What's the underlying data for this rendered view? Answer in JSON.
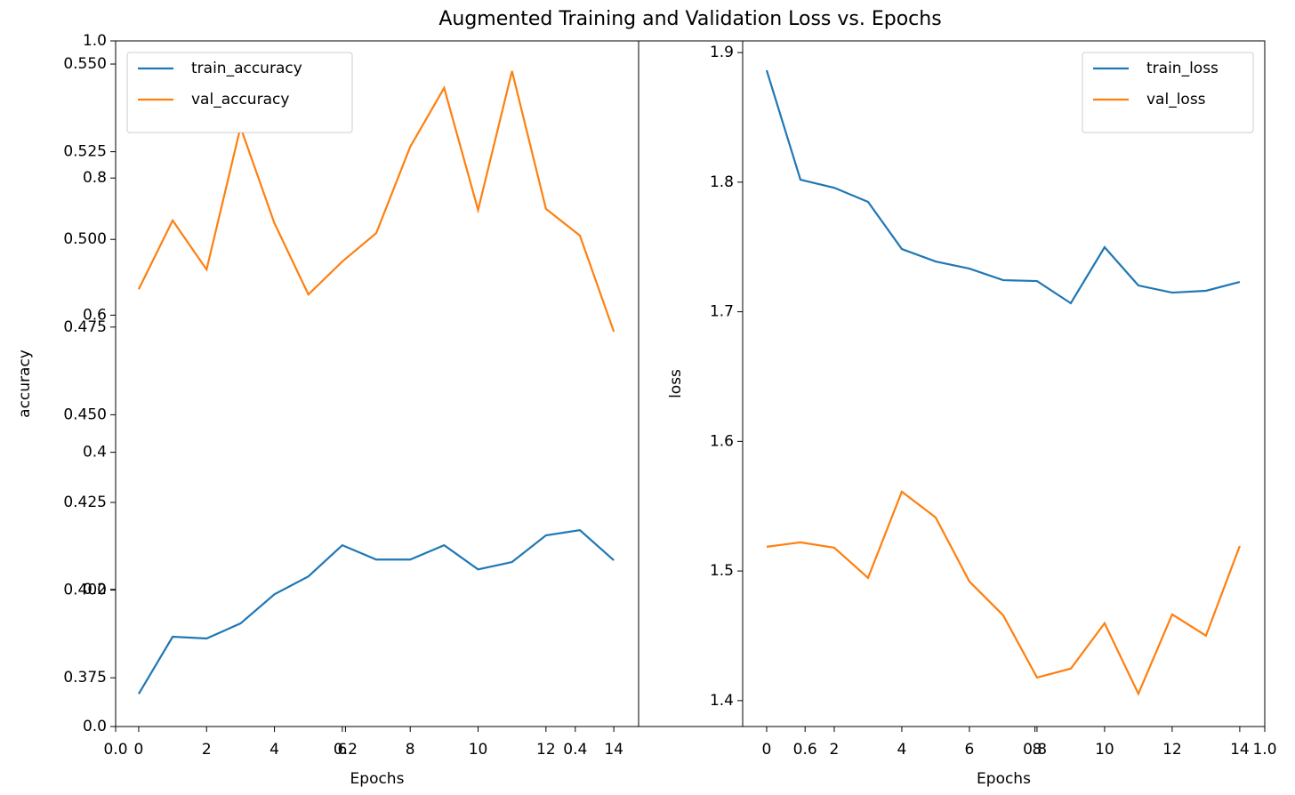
{
  "chart_data": [
    {
      "type": "line",
      "title": "Augmented Training and Validation Loss vs. Epochs",
      "xlim": [
        0,
        1
      ],
      "ylim": [
        0,
        1
      ],
      "xticks": [
        {
          "value": 0,
          "label": "0.0"
        },
        0.2,
        0.4,
        0.6,
        0.8,
        {
          "value": 1,
          "label": "1.0"
        }
      ],
      "yticks": [
        {
          "value": 0,
          "label": "0.0"
        },
        0.2,
        0.4,
        0.6,
        0.8,
        {
          "value": 1,
          "label": "1.0"
        }
      ],
      "series": []
    },
    {
      "type": "line",
      "xlabel": "Epochs",
      "ylabel": "accuracy",
      "legend": "upper left",
      "x": [
        0,
        1,
        2,
        3,
        4,
        5,
        6,
        7,
        8,
        9,
        10,
        11,
        12,
        13,
        14
      ],
      "xlim": [
        -0.68,
        14.73
      ],
      "ylim": [
        0.3611,
        0.5566
      ],
      "xticks": [
        0,
        2,
        4,
        6,
        8,
        10,
        12,
        14
      ],
      "yticks": [
        0.375,
        {
          "value": 0.4,
          "label": "0.400"
        },
        0.425,
        {
          "value": 0.45,
          "label": "0.450"
        },
        0.475,
        {
          "value": 0.5,
          "label": "0.500"
        },
        0.525,
        {
          "value": 0.55,
          "label": "0.550"
        }
      ],
      "series": [
        {
          "name": "train_accuracy",
          "color": "#1f77b4",
          "values": [
            0.3704,
            0.3867,
            0.3862,
            0.3905,
            0.3988,
            0.4039,
            0.4128,
            0.4087,
            0.4087,
            0.4128,
            0.4059,
            0.408,
            0.4156,
            0.4171,
            0.4085
          ]
        },
        {
          "name": "val_accuracy",
          "color": "#ff7f0e",
          "values": [
            0.4858,
            0.5054,
            0.4914,
            0.532,
            0.5046,
            0.4843,
            0.4937,
            0.5018,
            0.5264,
            0.5432,
            0.5084,
            0.548,
            0.5087,
            0.5011,
            0.4737
          ]
        }
      ]
    },
    {
      "type": "line",
      "xlabel": "Epochs",
      "ylabel": "loss",
      "legend": "upper right",
      "x": [
        0,
        1,
        2,
        3,
        4,
        5,
        6,
        7,
        8,
        9,
        10,
        11,
        12,
        13,
        14
      ],
      "xlim": [
        -0.71,
        14.74
      ],
      "ylim": [
        1.38,
        1.909
      ],
      "xticks": [
        0,
        2,
        4,
        6,
        8,
        10,
        12,
        14
      ],
      "yticks": [
        1.4,
        1.5,
        1.6,
        1.7,
        1.8,
        1.9
      ],
      "series": [
        {
          "name": "train_loss",
          "color": "#1f77b4",
          "values": [
            1.8863,
            1.8019,
            1.7957,
            1.7848,
            1.7484,
            1.7388,
            1.7333,
            1.7244,
            1.7237,
            1.7066,
            1.7498,
            1.7203,
            1.7148,
            1.7162,
            1.723
          ]
        },
        {
          "name": "val_loss",
          "color": "#ff7f0e",
          "values": [
            1.5187,
            1.5221,
            1.518,
            1.4947,
            1.5612,
            1.5413,
            1.4919,
            1.4658,
            1.4178,
            1.4247,
            1.4597,
            1.4053,
            1.4665,
            1.4501,
            1.5193
          ]
        }
      ]
    }
  ]
}
